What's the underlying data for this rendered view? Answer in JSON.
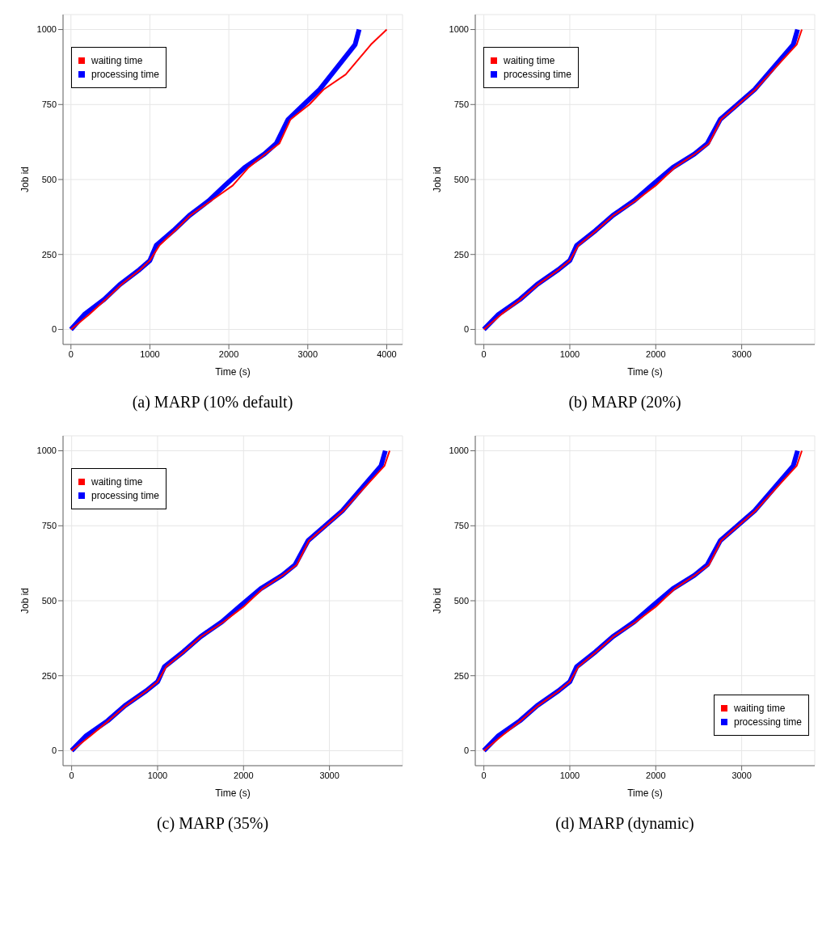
{
  "chart_data": [
    {
      "type": "line",
      "annotations": [
        "(a) MARP (10% default)"
      ],
      "xlabel": "Time (s)",
      "ylabel": "Job id",
      "xlim": [
        -100,
        4200
      ],
      "xticks": [
        0,
        1000,
        2000,
        3000,
        4000
      ],
      "ylim": [
        -50,
        1050
      ],
      "yticks": [
        0,
        250,
        500,
        750,
        1000
      ],
      "grid": true,
      "legend": "top left",
      "marker": "none",
      "series": [
        {
          "name": "processing time",
          "color": "#0000ff",
          "x": [
            0,
            170,
            420,
            620,
            870,
            1000,
            1080,
            1300,
            1500,
            1750,
            1950,
            2200,
            2450,
            2600,
            2750,
            2950,
            3150,
            3300,
            3450,
            3600,
            3650
          ],
          "values": [
            0,
            50,
            100,
            150,
            200,
            230,
            280,
            330,
            380,
            430,
            480,
            540,
            585,
            620,
            700,
            750,
            800,
            850,
            900,
            950,
            1000
          ]
        },
        {
          "name": "waiting time",
          "color": "#ff0000",
          "x": [
            0,
            230,
            440,
            640,
            880,
            1000,
            1120,
            1320,
            1510,
            1780,
            2050,
            2250,
            2460,
            2640,
            2780,
            3020,
            3200,
            3480,
            3640,
            3800,
            4000
          ],
          "values": [
            0,
            50,
            100,
            150,
            200,
            230,
            280,
            330,
            380,
            430,
            480,
            540,
            585,
            620,
            700,
            750,
            800,
            850,
            900,
            950,
            1000
          ]
        }
      ]
    },
    {
      "type": "line",
      "annotations": [
        "(b) MARP (20%)"
      ],
      "xlabel": "Time (s)",
      "ylabel": "Job id",
      "xlim": [
        -100,
        3850
      ],
      "xticks": [
        0,
        1000,
        2000,
        3000
      ],
      "ylim": [
        -50,
        1050
      ],
      "yticks": [
        0,
        250,
        500,
        750,
        1000
      ],
      "grid": true,
      "legend": "top left",
      "marker": "none",
      "series": [
        {
          "name": "processing time",
          "color": "#0000ff",
          "x": [
            0,
            170,
            420,
            620,
            870,
            1000,
            1080,
            1300,
            1500,
            1750,
            1950,
            2200,
            2450,
            2600,
            2750,
            2950,
            3150,
            3300,
            3450,
            3600,
            3650
          ],
          "values": [
            0,
            50,
            100,
            150,
            200,
            230,
            280,
            330,
            380,
            430,
            480,
            540,
            585,
            620,
            700,
            750,
            800,
            850,
            900,
            950,
            1000
          ]
        },
        {
          "name": "waiting time",
          "color": "#ff0000",
          "x": [
            0,
            200,
            430,
            630,
            875,
            1000,
            1100,
            1310,
            1505,
            1770,
            2000,
            2220,
            2455,
            2620,
            2760,
            2960,
            3160,
            3320,
            3480,
            3640,
            3700
          ],
          "values": [
            0,
            50,
            100,
            150,
            200,
            230,
            280,
            330,
            380,
            430,
            480,
            540,
            585,
            620,
            700,
            750,
            800,
            850,
            900,
            950,
            1000
          ]
        }
      ]
    },
    {
      "type": "line",
      "annotations": [
        "(c) MARP (35%)"
      ],
      "xlabel": "Time (s)",
      "ylabel": "Job id",
      "xlim": [
        -100,
        3850
      ],
      "xticks": [
        0,
        1000,
        2000,
        3000
      ],
      "ylim": [
        -50,
        1050
      ],
      "yticks": [
        0,
        250,
        500,
        750,
        1000
      ],
      "grid": true,
      "legend": "top left",
      "marker": "none",
      "series": [
        {
          "name": "processing time",
          "color": "#0000ff",
          "x": [
            0,
            170,
            420,
            620,
            870,
            1000,
            1080,
            1300,
            1500,
            1750,
            1950,
            2200,
            2450,
            2600,
            2750,
            2950,
            3150,
            3300,
            3450,
            3600,
            3650
          ],
          "values": [
            0,
            50,
            100,
            150,
            200,
            230,
            280,
            330,
            380,
            430,
            480,
            540,
            585,
            620,
            700,
            750,
            800,
            850,
            900,
            950,
            1000
          ]
        },
        {
          "name": "waiting time",
          "color": "#ff0000",
          "x": [
            0,
            220,
            430,
            630,
            875,
            1000,
            1100,
            1310,
            1505,
            1770,
            2000,
            2220,
            2455,
            2620,
            2760,
            2960,
            3160,
            3320,
            3480,
            3640,
            3700
          ],
          "values": [
            0,
            50,
            100,
            150,
            200,
            230,
            280,
            330,
            380,
            430,
            480,
            540,
            585,
            620,
            700,
            750,
            800,
            850,
            900,
            950,
            1000
          ]
        }
      ]
    },
    {
      "type": "line",
      "annotations": [
        "(d) MARP (dynamic)"
      ],
      "xlabel": "Time (s)",
      "ylabel": "Job id",
      "xlim": [
        -100,
        3850
      ],
      "xticks": [
        0,
        1000,
        2000,
        3000
      ],
      "ylim": [
        -50,
        1050
      ],
      "yticks": [
        0,
        250,
        500,
        750,
        1000
      ],
      "grid": true,
      "legend": "bottom right",
      "marker": "none",
      "series": [
        {
          "name": "processing time",
          "color": "#0000ff",
          "x": [
            0,
            170,
            420,
            620,
            870,
            1000,
            1080,
            1300,
            1500,
            1750,
            1950,
            2200,
            2450,
            2600,
            2750,
            2950,
            3150,
            3300,
            3450,
            3600,
            3650
          ],
          "values": [
            0,
            50,
            100,
            150,
            200,
            230,
            280,
            330,
            380,
            430,
            480,
            540,
            585,
            620,
            700,
            750,
            800,
            850,
            900,
            950,
            1000
          ]
        },
        {
          "name": "waiting time",
          "color": "#ff0000",
          "x": [
            0,
            210,
            430,
            630,
            875,
            1000,
            1100,
            1310,
            1505,
            1770,
            2000,
            2220,
            2455,
            2620,
            2760,
            2960,
            3160,
            3320,
            3480,
            3640,
            3700
          ],
          "values": [
            0,
            50,
            100,
            150,
            200,
            230,
            280,
            330,
            380,
            430,
            480,
            540,
            585,
            620,
            700,
            750,
            800,
            850,
            900,
            950,
            1000
          ]
        }
      ]
    }
  ]
}
